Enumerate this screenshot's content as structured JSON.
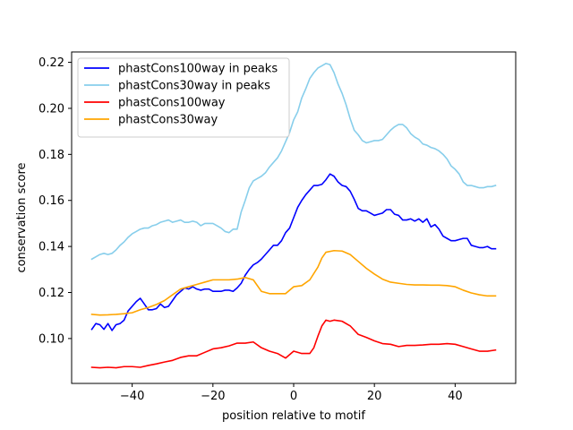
{
  "chart_data": {
    "type": "line",
    "title": "",
    "xlabel": "position relative to motif",
    "ylabel": "conservation score",
    "xlim": [
      -55,
      55
    ],
    "ylim": [
      0.0805,
      0.2245
    ],
    "xticks": [
      -40,
      -20,
      0,
      20,
      40
    ],
    "xtick_labels": [
      "−40",
      "−20",
      "0",
      "20",
      "40"
    ],
    "yticks": [
      0.1,
      0.12,
      0.14,
      0.16,
      0.18,
      0.2,
      0.22
    ],
    "ytick_labels": [
      "0.10",
      "0.12",
      "0.14",
      "0.16",
      "0.18",
      "0.20",
      "0.22"
    ],
    "grid": false,
    "legend_position": "top-left",
    "series": [
      {
        "name": "phastCons100way in peaks",
        "color": "#0000ff",
        "points": [
          [
            -50,
            0.104
          ],
          [
            -49,
            0.1065
          ],
          [
            -48,
            0.106
          ],
          [
            -47,
            0.104
          ],
          [
            -46,
            0.1065
          ],
          [
            -45,
            0.1035
          ],
          [
            -44,
            0.106
          ],
          [
            -43,
            0.1065
          ],
          [
            -42,
            0.108
          ],
          [
            -41,
            0.112
          ],
          [
            -40,
            0.114
          ],
          [
            -39,
            0.116
          ],
          [
            -38,
            0.1175
          ],
          [
            -37,
            0.115
          ],
          [
            -36,
            0.1125
          ],
          [
            -35,
            0.1125
          ],
          [
            -34,
            0.113
          ],
          [
            -33,
            0.115
          ],
          [
            -32,
            0.1135
          ],
          [
            -31,
            0.114
          ],
          [
            -30,
            0.1165
          ],
          [
            -29,
            0.119
          ],
          [
            -28,
            0.1205
          ],
          [
            -27,
            0.122
          ],
          [
            -26,
            0.1215
          ],
          [
            -25,
            0.1225
          ],
          [
            -24,
            0.1215
          ],
          [
            -23,
            0.121
          ],
          [
            -22,
            0.1215
          ],
          [
            -21,
            0.1215
          ],
          [
            -20,
            0.1205
          ],
          [
            -19,
            0.1205
          ],
          [
            -18,
            0.1205
          ],
          [
            -17,
            0.121
          ],
          [
            -16,
            0.121
          ],
          [
            -15,
            0.1205
          ],
          [
            -14,
            0.122
          ],
          [
            -13,
            0.124
          ],
          [
            -12,
            0.1275
          ],
          [
            -11,
            0.13
          ],
          [
            -10,
            0.132
          ],
          [
            -9,
            0.133
          ],
          [
            -8,
            0.1345
          ],
          [
            -7,
            0.1365
          ],
          [
            -6,
            0.1385
          ],
          [
            -5,
            0.1405
          ],
          [
            -4,
            0.1405
          ],
          [
            -3,
            0.1425
          ],
          [
            -2,
            0.146
          ],
          [
            -1,
            0.148
          ],
          [
            0,
            0.1525
          ],
          [
            1,
            0.157
          ],
          [
            2,
            0.16
          ],
          [
            3,
            0.1625
          ],
          [
            4,
            0.1645
          ],
          [
            5,
            0.1665
          ],
          [
            6,
            0.1665
          ],
          [
            7,
            0.167
          ],
          [
            8,
            0.169
          ],
          [
            9,
            0.1715
          ],
          [
            10,
            0.1705
          ],
          [
            11,
            0.168
          ],
          [
            12,
            0.1665
          ],
          [
            13,
            0.166
          ],
          [
            14,
            0.164
          ],
          [
            15,
            0.1605
          ],
          [
            16,
            0.1565
          ],
          [
            17,
            0.1555
          ],
          [
            18,
            0.1555
          ],
          [
            19,
            0.1545
          ],
          [
            20,
            0.1535
          ],
          [
            21,
            0.154
          ],
          [
            22,
            0.1545
          ],
          [
            23,
            0.156
          ],
          [
            24,
            0.156
          ],
          [
            25,
            0.154
          ],
          [
            26,
            0.1535
          ],
          [
            27,
            0.1515
          ],
          [
            28,
            0.1515
          ],
          [
            29,
            0.152
          ],
          [
            30,
            0.151
          ],
          [
            31,
            0.152
          ],
          [
            32,
            0.1505
          ],
          [
            33,
            0.152
          ],
          [
            34,
            0.1485
          ],
          [
            35,
            0.1495
          ],
          [
            36,
            0.1475
          ],
          [
            37,
            0.1445
          ],
          [
            38,
            0.1435
          ],
          [
            39,
            0.1425
          ],
          [
            40,
            0.1425
          ],
          [
            41,
            0.143
          ],
          [
            42,
            0.1435
          ],
          [
            43,
            0.1435
          ],
          [
            44,
            0.1405
          ],
          [
            45,
            0.14
          ],
          [
            46,
            0.1395
          ],
          [
            47,
            0.1395
          ],
          [
            48,
            0.14
          ],
          [
            49,
            0.139
          ],
          [
            50,
            0.139
          ]
        ]
      },
      {
        "name": "phastCons30way in peaks",
        "color": "#87ceeb",
        "points": [
          [
            -50,
            0.1345
          ],
          [
            -49,
            0.1355
          ],
          [
            -48,
            0.1365
          ],
          [
            -47,
            0.137
          ],
          [
            -46,
            0.1365
          ],
          [
            -45,
            0.137
          ],
          [
            -44,
            0.1385
          ],
          [
            -43,
            0.1405
          ],
          [
            -42,
            0.142
          ],
          [
            -41,
            0.144
          ],
          [
            -40,
            0.1455
          ],
          [
            -39,
            0.1465
          ],
          [
            -38,
            0.1475
          ],
          [
            -37,
            0.148
          ],
          [
            -36,
            0.148
          ],
          [
            -35,
            0.149
          ],
          [
            -34,
            0.1495
          ],
          [
            -33,
            0.1505
          ],
          [
            -32,
            0.151
          ],
          [
            -31,
            0.1515
          ],
          [
            -30,
            0.1505
          ],
          [
            -29,
            0.151
          ],
          [
            -28,
            0.1515
          ],
          [
            -27,
            0.1505
          ],
          [
            -26,
            0.1505
          ],
          [
            -25,
            0.151
          ],
          [
            -24,
            0.1505
          ],
          [
            -23,
            0.149
          ],
          [
            -22,
            0.15
          ],
          [
            -21,
            0.15
          ],
          [
            -20,
            0.15
          ],
          [
            -19,
            0.149
          ],
          [
            -18,
            0.148
          ],
          [
            -17,
            0.1465
          ],
          [
            -16,
            0.146
          ],
          [
            -15,
            0.1475
          ],
          [
            -14,
            0.1475
          ],
          [
            -13,
            0.155
          ],
          [
            -12,
            0.16
          ],
          [
            -11,
            0.1655
          ],
          [
            -10,
            0.1685
          ],
          [
            -9,
            0.1695
          ],
          [
            -8,
            0.1705
          ],
          [
            -7,
            0.172
          ],
          [
            -6,
            0.1745
          ],
          [
            -5,
            0.1765
          ],
          [
            -4,
            0.1785
          ],
          [
            -3,
            0.1815
          ],
          [
            -2,
            0.1855
          ],
          [
            -1,
            0.1895
          ],
          [
            0,
            0.195
          ],
          [
            1,
            0.1985
          ],
          [
            2,
            0.2045
          ],
          [
            3,
            0.2085
          ],
          [
            4,
            0.213
          ],
          [
            5,
            0.2155
          ],
          [
            6,
            0.2175
          ],
          [
            7,
            0.2185
          ],
          [
            8,
            0.2195
          ],
          [
            9,
            0.219
          ],
          [
            10,
            0.2155
          ],
          [
            11,
            0.2105
          ],
          [
            12,
            0.2065
          ],
          [
            13,
            0.2015
          ],
          [
            14,
            0.1955
          ],
          [
            15,
            0.1905
          ],
          [
            16,
            0.1885
          ],
          [
            17,
            0.186
          ],
          [
            18,
            0.185
          ],
          [
            19,
            0.1855
          ],
          [
            20,
            0.186
          ],
          [
            21,
            0.186
          ],
          [
            22,
            0.1865
          ],
          [
            23,
            0.1885
          ],
          [
            24,
            0.1905
          ],
          [
            25,
            0.192
          ],
          [
            26,
            0.193
          ],
          [
            27,
            0.193
          ],
          [
            28,
            0.1915
          ],
          [
            29,
            0.189
          ],
          [
            30,
            0.1875
          ],
          [
            31,
            0.1865
          ],
          [
            32,
            0.1845
          ],
          [
            33,
            0.184
          ],
          [
            34,
            0.183
          ],
          [
            35,
            0.1825
          ],
          [
            36,
            0.1815
          ],
          [
            37,
            0.18
          ],
          [
            38,
            0.178
          ],
          [
            39,
            0.175
          ],
          [
            40,
            0.1735
          ],
          [
            41,
            0.1715
          ],
          [
            42,
            0.168
          ],
          [
            43,
            0.1665
          ],
          [
            44,
            0.1665
          ],
          [
            45,
            0.166
          ],
          [
            46,
            0.1655
          ],
          [
            47,
            0.1655
          ],
          [
            48,
            0.166
          ],
          [
            49,
            0.166
          ],
          [
            50,
            0.1665
          ]
        ]
      },
      {
        "name": "phastCons100way",
        "color": "#ff0000",
        "points": [
          [
            -50,
            0.0875
          ],
          [
            -48,
            0.0873
          ],
          [
            -46,
            0.0875
          ],
          [
            -44,
            0.0873
          ],
          [
            -42,
            0.0878
          ],
          [
            -40,
            0.0878
          ],
          [
            -38,
            0.0875
          ],
          [
            -36,
            0.0883
          ],
          [
            -34,
            0.089
          ],
          [
            -32,
            0.0898
          ],
          [
            -30,
            0.0905
          ],
          [
            -28,
            0.0918
          ],
          [
            -26,
            0.0925
          ],
          [
            -24,
            0.0925
          ],
          [
            -22,
            0.094
          ],
          [
            -20,
            0.0955
          ],
          [
            -18,
            0.096
          ],
          [
            -16,
            0.0968
          ],
          [
            -14,
            0.098
          ],
          [
            -12,
            0.098
          ],
          [
            -10,
            0.0985
          ],
          [
            -8,
            0.096
          ],
          [
            -6,
            0.0945
          ],
          [
            -4,
            0.0935
          ],
          [
            -2,
            0.0915
          ],
          [
            0,
            0.0945
          ],
          [
            2,
            0.0935
          ],
          [
            4,
            0.0935
          ],
          [
            5,
            0.096
          ],
          [
            6,
            0.101
          ],
          [
            7,
            0.1055
          ],
          [
            8,
            0.108
          ],
          [
            9,
            0.1075
          ],
          [
            10,
            0.108
          ],
          [
            12,
            0.1075
          ],
          [
            14,
            0.1055
          ],
          [
            16,
            0.1018
          ],
          [
            18,
            0.1005
          ],
          [
            20,
            0.099
          ],
          [
            22,
            0.0978
          ],
          [
            24,
            0.0975
          ],
          [
            26,
            0.0965
          ],
          [
            28,
            0.097
          ],
          [
            30,
            0.097
          ],
          [
            32,
            0.0972
          ],
          [
            34,
            0.0975
          ],
          [
            36,
            0.0975
          ],
          [
            38,
            0.0978
          ],
          [
            40,
            0.0975
          ],
          [
            42,
            0.0965
          ],
          [
            44,
            0.0955
          ],
          [
            46,
            0.0945
          ],
          [
            48,
            0.0945
          ],
          [
            50,
            0.095
          ]
        ]
      },
      {
        "name": "phastCons30way",
        "color": "#ffa500",
        "points": [
          [
            -50,
            0.1105
          ],
          [
            -48,
            0.1102
          ],
          [
            -46,
            0.1103
          ],
          [
            -44,
            0.1105
          ],
          [
            -42,
            0.1108
          ],
          [
            -40,
            0.1112
          ],
          [
            -38,
            0.1125
          ],
          [
            -36,
            0.1135
          ],
          [
            -34,
            0.1148
          ],
          [
            -32,
            0.1165
          ],
          [
            -30,
            0.119
          ],
          [
            -28,
            0.1215
          ],
          [
            -26,
            0.1225
          ],
          [
            -24,
            0.1235
          ],
          [
            -22,
            0.1245
          ],
          [
            -20,
            0.1255
          ],
          [
            -18,
            0.1255
          ],
          [
            -16,
            0.1255
          ],
          [
            -14,
            0.1258
          ],
          [
            -12,
            0.1265
          ],
          [
            -10,
            0.1255
          ],
          [
            -8,
            0.1205
          ],
          [
            -6,
            0.1195
          ],
          [
            -4,
            0.1195
          ],
          [
            -2,
            0.1195
          ],
          [
            0,
            0.1225
          ],
          [
            2,
            0.123
          ],
          [
            4,
            0.1255
          ],
          [
            6,
            0.131
          ],
          [
            7,
            0.135
          ],
          [
            8,
            0.1375
          ],
          [
            10,
            0.1382
          ],
          [
            12,
            0.138
          ],
          [
            14,
            0.1365
          ],
          [
            16,
            0.1335
          ],
          [
            18,
            0.1305
          ],
          [
            20,
            0.128
          ],
          [
            22,
            0.1258
          ],
          [
            24,
            0.1245
          ],
          [
            26,
            0.124
          ],
          [
            28,
            0.1235
          ],
          [
            30,
            0.1233
          ],
          [
            32,
            0.1233
          ],
          [
            34,
            0.1232
          ],
          [
            36,
            0.1232
          ],
          [
            38,
            0.123
          ],
          [
            40,
            0.1225
          ],
          [
            42,
            0.121
          ],
          [
            44,
            0.1198
          ],
          [
            46,
            0.119
          ],
          [
            48,
            0.1185
          ],
          [
            50,
            0.1185
          ]
        ]
      }
    ]
  }
}
